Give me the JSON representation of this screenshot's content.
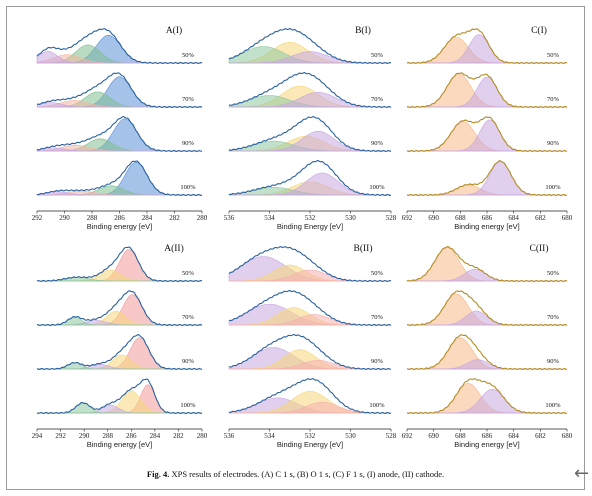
{
  "caption": {
    "fig_label": "Fig. 4.",
    "text": " XPS results of electrodes. (A) C 1 s, (B) O 1 s, (C) F 1 s, (I) anode, (II) cathode."
  },
  "nav": {
    "back_icon": "left-arrow-icon",
    "back_glyph": "←"
  },
  "colors": {
    "envelope_C": "#2a62a0",
    "envelope_B": "#2a62a0",
    "envelope_F": "#b58c22",
    "baseline_green": "#4c9a6a",
    "baseline_purple": "#9b7cc4",
    "baseline_orange": "#e08a3c"
  },
  "chart_data": [
    {
      "id": "A-I",
      "type": "line",
      "title": "A(I)",
      "xlabel": "Binding energy [eV]",
      "xlim": [
        292,
        280
      ],
      "xticks": [
        292,
        290,
        288,
        286,
        284,
        282,
        280
      ],
      "envelope_color": "#2a62a0",
      "series": [
        {
          "name": "50%",
          "peaks": [
            {
              "c": 286.8,
              "w": 0.9,
              "h": 1.0,
              "color": "#5b8fd6"
            },
            {
              "c": 288.3,
              "w": 0.9,
              "h": 0.65,
              "color": "#7fbf8f"
            },
            {
              "c": 289.8,
              "w": 1.0,
              "h": 0.3,
              "color": "#f1b7a0"
            },
            {
              "c": 291.2,
              "w": 0.7,
              "h": 0.42,
              "color": "#c9a7e0"
            }
          ]
        },
        {
          "name": "70%",
          "peaks": [
            {
              "c": 286.0,
              "w": 0.85,
              "h": 1.0,
              "color": "#5b8fd6"
            },
            {
              "c": 287.6,
              "w": 0.9,
              "h": 0.5,
              "color": "#7fbf8f"
            },
            {
              "c": 289.3,
              "w": 1.0,
              "h": 0.22,
              "color": "#f1b7a0"
            },
            {
              "c": 291.0,
              "w": 0.8,
              "h": 0.15,
              "color": "#c9a7e0"
            }
          ]
        },
        {
          "name": "90%",
          "peaks": [
            {
              "c": 285.6,
              "w": 0.85,
              "h": 1.0,
              "color": "#5b8fd6"
            },
            {
              "c": 287.4,
              "w": 0.9,
              "h": 0.38,
              "color": "#7fbf8f"
            },
            {
              "c": 289.2,
              "w": 1.0,
              "h": 0.18,
              "color": "#f1b7a0"
            },
            {
              "c": 290.8,
              "w": 0.8,
              "h": 0.1,
              "color": "#c9a7e0"
            }
          ]
        },
        {
          "name": "100%",
          "peaks": [
            {
              "c": 284.8,
              "w": 0.8,
              "h": 1.0,
              "color": "#5b8fd6"
            },
            {
              "c": 286.6,
              "w": 0.9,
              "h": 0.28,
              "color": "#7fbf8f"
            },
            {
              "c": 288.8,
              "w": 1.0,
              "h": 0.12,
              "color": "#f1b7a0"
            },
            {
              "c": 290.5,
              "w": 0.8,
              "h": 0.1,
              "color": "#c9a7e0"
            }
          ]
        }
      ]
    },
    {
      "id": "B-I",
      "type": "line",
      "title": "B(I)",
      "xlabel": "Binding Energy [eV]",
      "xlim": [
        536,
        528
      ],
      "xticks": [
        536,
        534,
        532,
        530,
        528
      ],
      "envelope_color": "#2a62a0",
      "series": [
        {
          "name": "50%",
          "peaks": [
            {
              "c": 533.0,
              "w": 0.9,
              "h": 1.0,
              "color": "#f5d77a"
            },
            {
              "c": 534.3,
              "w": 1.0,
              "h": 0.8,
              "color": "#8fc9a0"
            },
            {
              "c": 532.0,
              "w": 0.9,
              "h": 0.55,
              "color": "#c9a7e0"
            }
          ]
        },
        {
          "name": "70%",
          "peaks": [
            {
              "c": 532.5,
              "w": 0.9,
              "h": 1.0,
              "color": "#f5d77a"
            },
            {
              "c": 534.0,
              "w": 1.0,
              "h": 0.55,
              "color": "#8fc9a0"
            },
            {
              "c": 531.6,
              "w": 0.9,
              "h": 0.7,
              "color": "#c9a7e0"
            }
          ]
        },
        {
          "name": "90%",
          "peaks": [
            {
              "c": 532.2,
              "w": 0.9,
              "h": 0.75,
              "color": "#f5d77a"
            },
            {
              "c": 533.8,
              "w": 1.0,
              "h": 0.5,
              "color": "#8fc9a0"
            },
            {
              "c": 531.6,
              "w": 0.8,
              "h": 1.0,
              "color": "#c9a7e0"
            }
          ]
        },
        {
          "name": "100%",
          "peaks": [
            {
              "c": 532.0,
              "w": 0.9,
              "h": 0.6,
              "color": "#f5d77a"
            },
            {
              "c": 533.8,
              "w": 1.0,
              "h": 0.35,
              "color": "#8fc9a0"
            },
            {
              "c": 531.4,
              "w": 0.8,
              "h": 1.0,
              "color": "#c9a7e0"
            }
          ]
        }
      ]
    },
    {
      "id": "C-I",
      "type": "line",
      "title": "C(I)",
      "xlabel": "Binding energy [eV]",
      "xlim": [
        692,
        680
      ],
      "xticks": [
        692,
        690,
        688,
        686,
        684,
        682,
        680
      ],
      "envelope_color": "#b58c22",
      "series": [
        {
          "name": "50%",
          "peaks": [
            {
              "c": 688.3,
              "w": 0.9,
              "h": 0.9,
              "color": "#f5b98a"
            },
            {
              "c": 686.6,
              "w": 0.75,
              "h": 1.0,
              "color": "#c9a7e0"
            }
          ]
        },
        {
          "name": "70%",
          "peaks": [
            {
              "c": 688.1,
              "w": 0.9,
              "h": 1.0,
              "color": "#f5b98a"
            },
            {
              "c": 686.0,
              "w": 0.75,
              "h": 0.9,
              "color": "#c9a7e0"
            }
          ]
        },
        {
          "name": "90%",
          "peaks": [
            {
              "c": 687.8,
              "w": 0.9,
              "h": 0.95,
              "color": "#f5b98a"
            },
            {
              "c": 685.8,
              "w": 0.75,
              "h": 1.0,
              "color": "#c9a7e0"
            }
          ]
        },
        {
          "name": "100%",
          "peaks": [
            {
              "c": 687.4,
              "w": 0.9,
              "h": 0.3,
              "color": "#f5b98a"
            },
            {
              "c": 685.0,
              "w": 0.8,
              "h": 1.0,
              "color": "#c9a7e0"
            }
          ]
        }
      ]
    },
    {
      "id": "A-II",
      "type": "line",
      "title": "A(II)",
      "xlabel": "Binding energy [eV]",
      "xlim": [
        294,
        280
      ],
      "xticks": [
        294,
        292,
        290,
        288,
        286,
        284,
        282,
        280
      ],
      "envelope_color": "#2a62a0",
      "series": [
        {
          "name": "50%",
          "peaks": [
            {
              "c": 286.2,
              "w": 0.8,
              "h": 1.0,
              "color": "#f29b9b"
            },
            {
              "c": 287.8,
              "w": 0.9,
              "h": 0.35,
              "color": "#f5d77a"
            },
            {
              "c": 290.6,
              "w": 1.0,
              "h": 0.12,
              "color": "#8fc9a0"
            }
          ]
        },
        {
          "name": "70%",
          "peaks": [
            {
              "c": 285.9,
              "w": 0.8,
              "h": 1.0,
              "color": "#f29b9b"
            },
            {
              "c": 287.3,
              "w": 0.8,
              "h": 0.45,
              "color": "#f5d77a"
            },
            {
              "c": 289.0,
              "w": 0.9,
              "h": 0.15,
              "color": "#c9a7e0"
            },
            {
              "c": 290.8,
              "w": 0.6,
              "h": 0.25,
              "color": "#8fc9a0"
            }
          ]
        },
        {
          "name": "90%",
          "peaks": [
            {
              "c": 285.3,
              "w": 0.8,
              "h": 1.0,
              "color": "#f29b9b"
            },
            {
              "c": 286.8,
              "w": 0.8,
              "h": 0.45,
              "color": "#f5d77a"
            },
            {
              "c": 288.7,
              "w": 0.8,
              "h": 0.15,
              "color": "#c9a7e0"
            },
            {
              "c": 290.8,
              "w": 0.6,
              "h": 0.2,
              "color": "#8fc9a0"
            }
          ]
        },
        {
          "name": "100%",
          "peaks": [
            {
              "c": 284.6,
              "w": 0.6,
              "h": 1.0,
              "color": "#f29b9b"
            },
            {
              "c": 286.0,
              "w": 0.8,
              "h": 0.78,
              "color": "#f5d77a"
            },
            {
              "c": 287.8,
              "w": 0.7,
              "h": 0.28,
              "color": "#c9a7e0"
            },
            {
              "c": 290.1,
              "w": 0.6,
              "h": 0.36,
              "color": "#8fc9a0"
            }
          ]
        }
      ]
    },
    {
      "id": "B-II",
      "type": "line",
      "title": "B(II)",
      "xlabel": "Binding Energy [eV]",
      "xlim": [
        536,
        528
      ],
      "xticks": [
        536,
        534,
        532,
        530,
        528
      ],
      "envelope_color": "#2a62a0",
      "series": [
        {
          "name": "50%",
          "peaks": [
            {
              "c": 534.3,
              "w": 1.1,
              "h": 1.0,
              "color": "#c9a7e0"
            },
            {
              "c": 533.0,
              "w": 0.8,
              "h": 0.65,
              "color": "#f5d77a"
            },
            {
              "c": 532.0,
              "w": 0.8,
              "h": 0.45,
              "color": "#f5b0b0"
            }
          ]
        },
        {
          "name": "70%",
          "peaks": [
            {
              "c": 534.0,
              "w": 1.1,
              "h": 0.9,
              "color": "#c9a7e0"
            },
            {
              "c": 532.8,
              "w": 0.8,
              "h": 0.75,
              "color": "#f5d77a"
            },
            {
              "c": 531.8,
              "w": 0.8,
              "h": 0.45,
              "color": "#f5b0b0"
            }
          ]
        },
        {
          "name": "90%",
          "peaks": [
            {
              "c": 533.8,
              "w": 1.0,
              "h": 1.0,
              "color": "#c9a7e0"
            },
            {
              "c": 532.5,
              "w": 0.8,
              "h": 0.9,
              "color": "#f5d77a"
            },
            {
              "c": 531.6,
              "w": 0.8,
              "h": 0.4,
              "color": "#f5b0b0"
            }
          ]
        },
        {
          "name": "100%",
          "peaks": [
            {
              "c": 533.6,
              "w": 1.0,
              "h": 0.7,
              "color": "#c9a7e0"
            },
            {
              "c": 532.0,
              "w": 0.9,
              "h": 1.0,
              "color": "#f5d77a"
            },
            {
              "c": 531.4,
              "w": 0.8,
              "h": 0.5,
              "color": "#f5b0b0"
            }
          ]
        }
      ]
    },
    {
      "id": "C-II",
      "type": "line",
      "title": "C(II)",
      "xlabel": "Binding energy [eV]",
      "xlim": [
        692,
        680
      ],
      "xticks": [
        692,
        690,
        688,
        686,
        684,
        682,
        680
      ],
      "envelope_color": "#b58c22",
      "series": [
        {
          "name": "50%",
          "peaks": [
            {
              "c": 689.0,
              "w": 0.9,
              "h": 1.0,
              "color": "#f5b98a"
            },
            {
              "c": 686.9,
              "w": 0.8,
              "h": 0.35,
              "color": "#c9a7e0"
            }
          ]
        },
        {
          "name": "70%",
          "peaks": [
            {
              "c": 688.3,
              "w": 0.9,
              "h": 1.0,
              "color": "#f5b98a"
            },
            {
              "c": 686.8,
              "w": 0.8,
              "h": 0.45,
              "color": "#c9a7e0"
            }
          ]
        },
        {
          "name": "90%",
          "peaks": [
            {
              "c": 688.0,
              "w": 0.9,
              "h": 1.0,
              "color": "#f5b98a"
            },
            {
              "c": 686.7,
              "w": 0.8,
              "h": 0.3,
              "color": "#c9a7e0"
            }
          ]
        },
        {
          "name": "100%",
          "peaks": [
            {
              "c": 687.4,
              "w": 0.9,
              "h": 1.0,
              "color": "#f5b98a"
            },
            {
              "c": 685.6,
              "w": 0.9,
              "h": 0.8,
              "color": "#c9a7e0"
            }
          ]
        }
      ]
    }
  ]
}
